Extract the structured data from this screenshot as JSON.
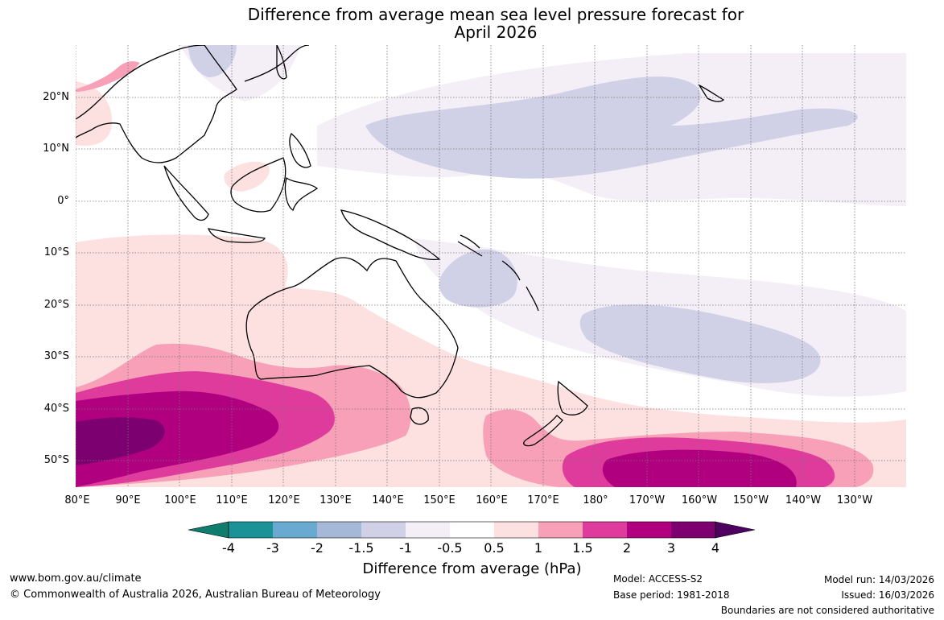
{
  "title_line1": "Difference from average mean sea level pressure forecast for",
  "title_line2": "April 2026",
  "map": {
    "lat_labels": [
      "20°N",
      "10°N",
      "0°",
      "10°S",
      "20°S",
      "30°S",
      "40°S",
      "50°S"
    ],
    "lon_labels": [
      "80°E",
      "90°E",
      "100°E",
      "110°E",
      "120°E",
      "130°E",
      "140°E",
      "150°E",
      "160°E",
      "170°E",
      "180°",
      "170°W",
      "160°W",
      "150°W",
      "140°W",
      "130°W"
    ]
  },
  "legend": {
    "ticks": [
      "-4",
      "-3",
      "-2",
      "-1.5",
      "-1",
      "-0.5",
      "0.5",
      "1",
      "1.5",
      "2",
      "3",
      "4"
    ],
    "colors": [
      "#0f7d6e",
      "#1b9198",
      "#6aaad0",
      "#a6b8d8",
      "#d0d0e6",
      "#f4eff7",
      "#ffffff",
      "#fde0e0",
      "#f7a0b8",
      "#de3b9c",
      "#b00080",
      "#7c0070",
      "#4d0060"
    ],
    "title": "Difference from average (hPa)"
  },
  "footer": {
    "url": "www.bom.gov.au/climate",
    "copyright": "© Commonwealth of Australia 2026, Australian Bureau of Meteorology",
    "model": "Model: ACCESS-S2",
    "base_period": "Base period: 1981-2018",
    "model_run": "Model run: 14/03/2026",
    "issued": "Issued: 16/03/2026",
    "disclaimer": "Boundaries are not considered authoritative"
  }
}
